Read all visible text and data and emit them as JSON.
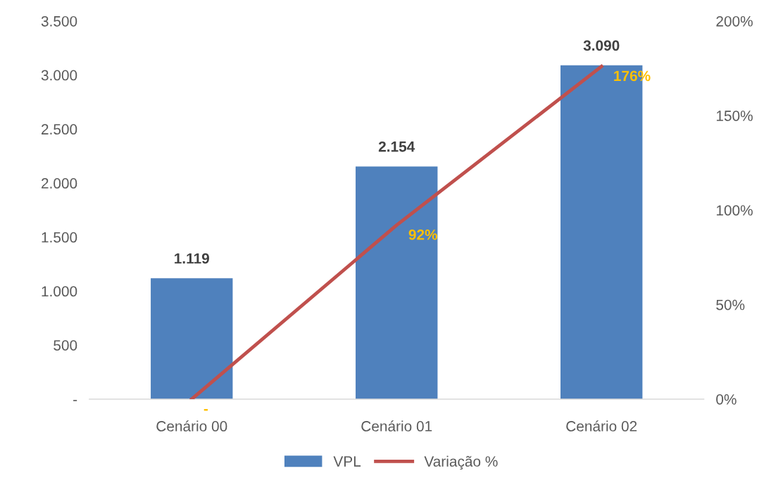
{
  "chart_data": {
    "type": "bar",
    "categories": [
      "Cenário 00",
      "Cenário 01",
      "Cenário 02"
    ],
    "series": [
      {
        "name": "VPL",
        "color": "#4f81bd",
        "values": [
          1119,
          2154,
          3090
        ],
        "value_labels": [
          "1.119",
          "2.154",
          "3.090"
        ]
      },
      {
        "name": "Variação %",
        "type": "line",
        "axis": "y2",
        "color": "#c0504d",
        "values": [
          0,
          92,
          176
        ],
        "value_labels": [
          "-",
          "92%",
          "176%"
        ]
      }
    ],
    "ylim": [
      0,
      3500
    ],
    "yticks": [
      {
        "value": 0,
        "label": "-"
      },
      {
        "value": 500,
        "label": "500"
      },
      {
        "value": 1000,
        "label": "1.000"
      },
      {
        "value": 1500,
        "label": "1.500"
      },
      {
        "value": 2000,
        "label": "2.000"
      },
      {
        "value": 2500,
        "label": "2.500"
      },
      {
        "value": 3000,
        "label": "3.000"
      },
      {
        "value": 3500,
        "label": "3.500"
      }
    ],
    "y2lim": [
      0,
      200
    ],
    "y2ticks": [
      {
        "value": 0,
        "label": "0%"
      },
      {
        "value": 50,
        "label": "50%"
      },
      {
        "value": 100,
        "label": "100%"
      },
      {
        "value": 150,
        "label": "150%"
      },
      {
        "value": 200,
        "label": "200%"
      }
    ],
    "grid": false,
    "legend": "bottom",
    "marker": "none",
    "line_style": "solid"
  }
}
